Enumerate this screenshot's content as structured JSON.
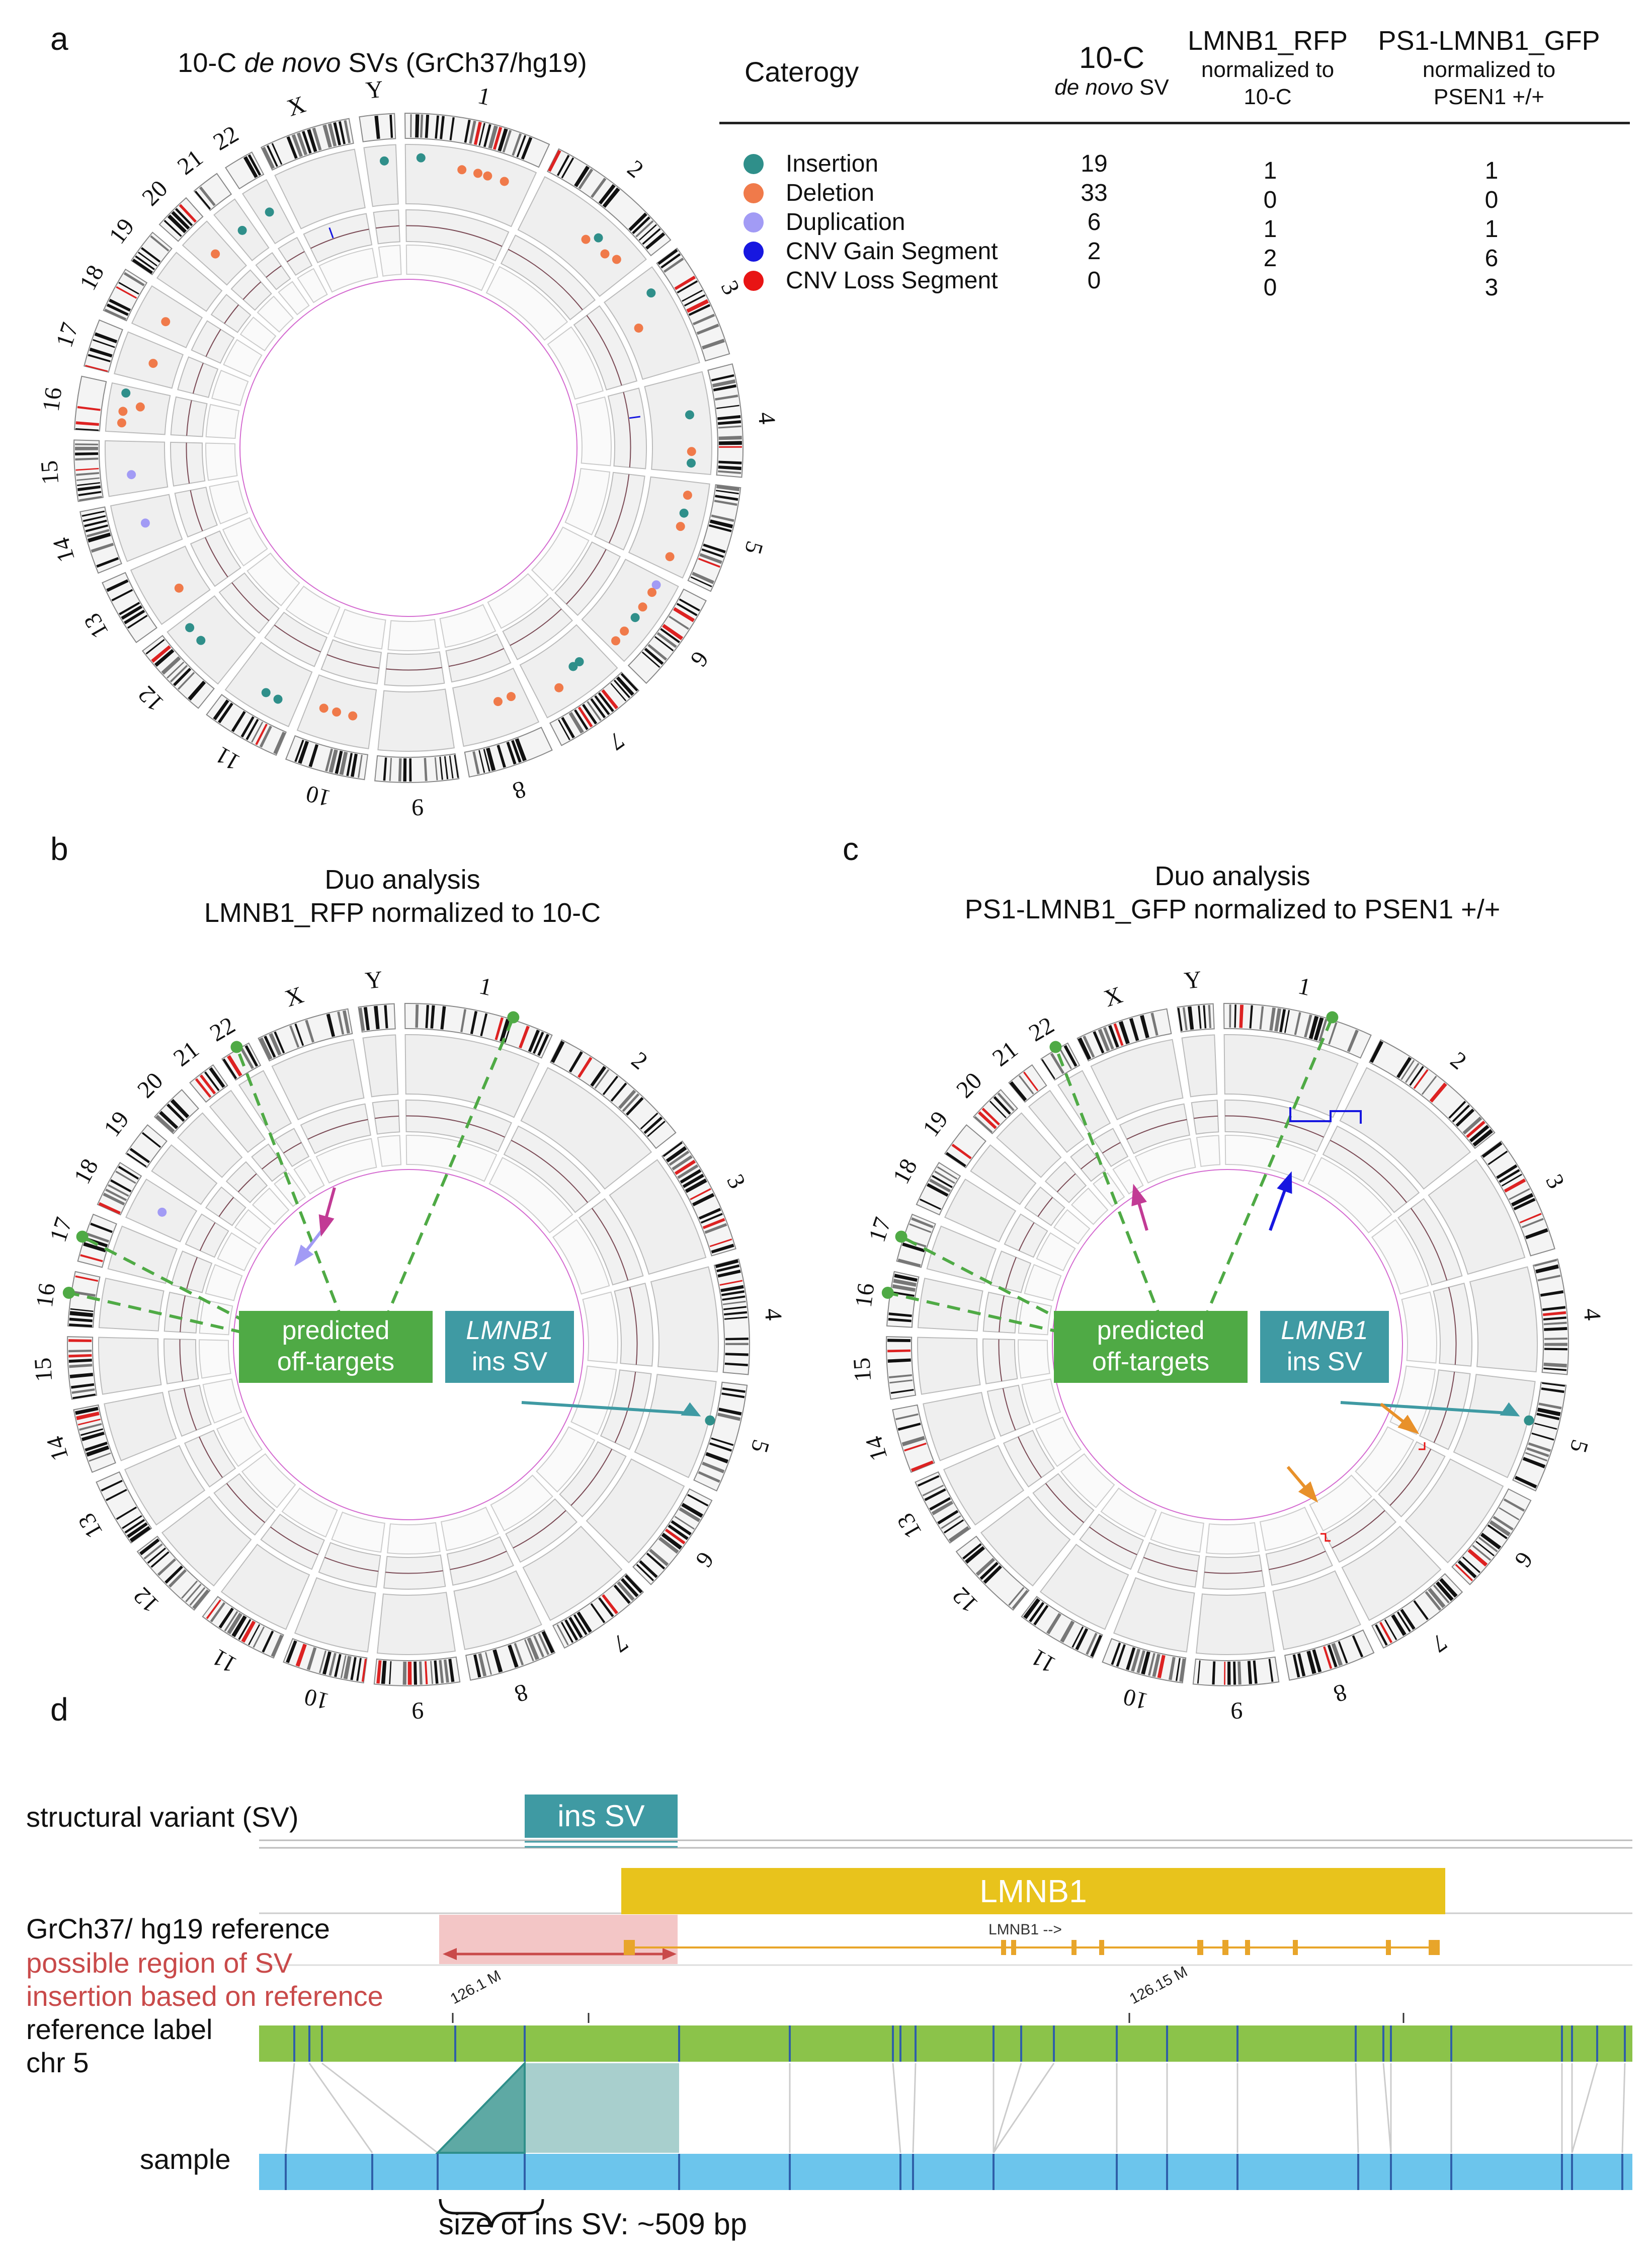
{
  "panel_a": {
    "letter": "a",
    "title_prefix": "10-C ",
    "title_em": "de novo",
    "title_suffix": " SVs (GrCh37/hg19)",
    "chromosomes": [
      "1",
      "2",
      "3",
      "4",
      "5",
      "6",
      "7",
      "8",
      "9",
      "10",
      "11",
      "12",
      "13",
      "14",
      "15",
      "16",
      "17",
      "18",
      "19",
      "20",
      "21",
      "22",
      "X",
      "Y"
    ]
  },
  "table": {
    "col_category": "Caterogy",
    "col2_title": "10-C",
    "col2_sub_em": "de novo",
    "col2_sub": " SV",
    "col3_title": "LMNB1_RFP",
    "col3_sub1": "normalized to",
    "col3_sub2": "10-C",
    "col4_title": "PS1-LMNB1_GFP",
    "col4_sub1": "normalized to",
    "col4_sub2": "PSEN1 +/+",
    "rows": [
      {
        "label": "Insertion",
        "color": "#2f8f8a",
        "v1": "19",
        "v2": "1",
        "v3": "1"
      },
      {
        "label": "Deletion",
        "color": "#f07a4a",
        "v1": "33",
        "v2": "0",
        "v3": "0"
      },
      {
        "label": "Duplication",
        "color": "#a29bf5",
        "v1": "6",
        "v2": "1",
        "v3": "1"
      },
      {
        "label": "CNV Gain Segment",
        "color": "#1717e0",
        "v1": "2",
        "v2": "2",
        "v3": "6"
      },
      {
        "label": "CNV Loss Segment",
        "color": "#e81414",
        "v1": "0",
        "v2": "0",
        "v3": "3"
      }
    ]
  },
  "panel_b": {
    "letter": "b",
    "title1": "Duo analysis",
    "title2": "LMNB1_RFP normalized to 10-C",
    "box_offtarget_1": "predicted",
    "box_offtarget_2": "off-targets",
    "box_ins_1": "LMNB1",
    "box_ins_2": "ins SV"
  },
  "panel_c": {
    "letter": "c",
    "title1": "Duo analysis",
    "title2": "PS1-LMNB1_GFP normalized to PSEN1 +/+",
    "box_offtarget_1": "predicted",
    "box_offtarget_2": "off-targets",
    "box_ins_1": "LMNB1",
    "box_ins_2": "ins SV"
  },
  "panel_d": {
    "letter": "d",
    "sv_track_label": "structural variant (SV)",
    "ins_sv_label": "ins SV",
    "gene_label": "LMNB1",
    "gene_small_label": "LMNB1 -->",
    "reference_label": "GrCh37/ hg19 reference",
    "possible_region_1": "possible region of SV",
    "possible_region_2": "insertion based on reference",
    "tick1": "126.1 M",
    "tick2": "126.15 M",
    "ref_label_1": "reference label",
    "ref_label_2": "chr 5",
    "sample_label": "sample",
    "size_label": "size of ins SV: ~509 bp"
  },
  "colors": {
    "insertion": "#2f8f8a",
    "deletion": "#f07a4a",
    "duplication": "#a29bf5",
    "cnv_gain": "#1717e0",
    "cnv_loss": "#e81414",
    "offtarget": "#4faa45",
    "ins_box": "#3f9aa3",
    "gene": "#e8c31c",
    "ref_bar": "#8bc34a",
    "sample_bar": "#6cc5ec",
    "region": "#c94a4a"
  }
}
